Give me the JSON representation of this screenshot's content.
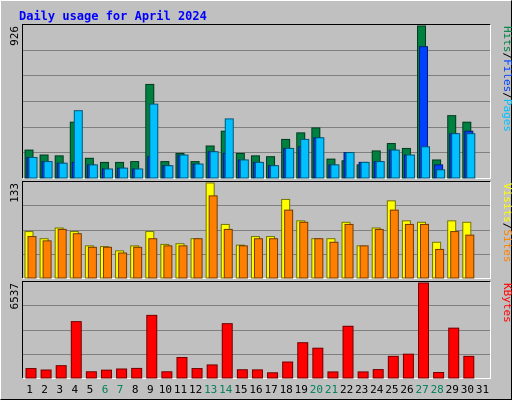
{
  "chart_data": [
    {
      "type": "bar",
      "title": "Daily usage for April 2024",
      "panel": "hits-files-pages",
      "categories": [
        "1",
        "2",
        "3",
        "4",
        "5",
        "6",
        "7",
        "8",
        "9",
        "10",
        "11",
        "12",
        "13",
        "14",
        "15",
        "16",
        "17",
        "18",
        "19",
        "20",
        "21",
        "22",
        "23",
        "24",
        "25",
        "26",
        "27",
        "28",
        "29",
        "30",
        "31"
      ],
      "weekend_days": [
        "6",
        "7",
        "13",
        "14",
        "20",
        "21",
        "27",
        "28"
      ],
      "ylim": [
        0,
        926
      ],
      "max_label": "926",
      "legend": [
        "Pages",
        "Files",
        "Hits"
      ],
      "series": [
        {
          "name": "Hits",
          "color": "#008040",
          "values": [
            170,
            140,
            135,
            340,
            120,
            95,
            95,
            100,
            570,
            100,
            150,
            100,
            195,
            285,
            150,
            135,
            130,
            235,
            275,
            305,
            115,
            105,
            80,
            165,
            210,
            180,
            926,
            110,
            380,
            340,
            null
          ]
        },
        {
          "name": "Files",
          "color": "#0040ff",
          "values": [
            125,
            100,
            90,
            95,
            80,
            55,
            60,
            55,
            130,
            75,
            140,
            85,
            160,
            150,
            110,
            95,
            75,
            180,
            190,
            245,
            80,
            155,
            95,
            100,
            170,
            140,
            800,
            80,
            270,
            285,
            null
          ]
        },
        {
          "name": "Pages",
          "color": "#00c0ff",
          "values": [
            125,
            100,
            90,
            410,
            80,
            55,
            60,
            55,
            450,
            75,
            140,
            85,
            160,
            360,
            110,
            95,
            75,
            180,
            235,
            245,
            80,
            155,
            95,
            100,
            170,
            140,
            190,
            50,
            270,
            270,
            null
          ]
        }
      ]
    },
    {
      "type": "bar",
      "panel": "visits-sites",
      "categories": [
        "1",
        "2",
        "3",
        "4",
        "5",
        "6",
        "7",
        "8",
        "9",
        "10",
        "11",
        "12",
        "13",
        "14",
        "15",
        "16",
        "17",
        "18",
        "19",
        "20",
        "21",
        "22",
        "23",
        "24",
        "25",
        "26",
        "27",
        "28",
        "29",
        "30",
        "31"
      ],
      "ylim": [
        0,
        133
      ],
      "max_label": "133",
      "legend": [
        "Sites",
        "Visits"
      ],
      "series": [
        {
          "name": "Visits",
          "color": "#ffff00",
          "values": [
            65,
            55,
            70,
            65,
            45,
            44,
            38,
            45,
            65,
            47,
            48,
            55,
            133,
            75,
            46,
            58,
            58,
            110,
            80,
            55,
            55,
            78,
            45,
            70,
            108,
            80,
            78,
            50,
            80,
            78,
            null
          ]
        },
        {
          "name": "Sites",
          "color": "#ff8000",
          "values": [
            58,
            52,
            68,
            62,
            43,
            43,
            35,
            43,
            55,
            45,
            45,
            55,
            115,
            68,
            45,
            55,
            55,
            95,
            78,
            55,
            50,
            75,
            45,
            68,
            95,
            75,
            75,
            40,
            65,
            60,
            null
          ]
        }
      ]
    },
    {
      "type": "bar",
      "panel": "kbytes",
      "categories": [
        "1",
        "2",
        "3",
        "4",
        "5",
        "6",
        "7",
        "8",
        "9",
        "10",
        "11",
        "12",
        "13",
        "14",
        "15",
        "16",
        "17",
        "18",
        "19",
        "20",
        "21",
        "22",
        "23",
        "24",
        "25",
        "26",
        "27",
        "28",
        "29",
        "30",
        "31"
      ],
      "ylim": [
        0,
        6537
      ],
      "max_label": "6537",
      "legend": [
        "KBytes"
      ],
      "series": [
        {
          "name": "KBytes",
          "color": "#ff0000",
          "values": [
            650,
            550,
            850,
            3880,
            430,
            540,
            620,
            660,
            4310,
            430,
            1410,
            650,
            900,
            3740,
            570,
            560,
            360,
            1100,
            2430,
            2050,
            420,
            3560,
            420,
            580,
            1490,
            1640,
            6537,
            380,
            3430,
            1490,
            null
          ]
        }
      ]
    }
  ]
}
